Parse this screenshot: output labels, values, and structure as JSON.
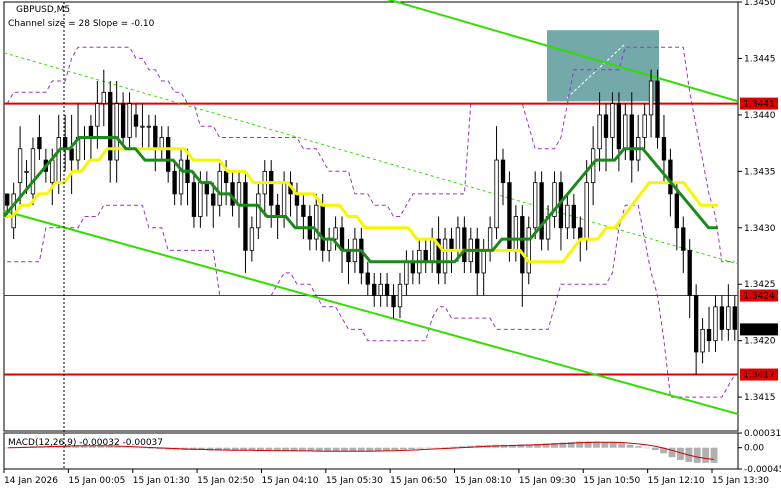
{
  "header": {
    "symbol": "GBPUSD,M5",
    "subtitle": "Channel size = 28 Slope = -0.10"
  },
  "macd": {
    "label": "MACD(12,26,9) -0.00032 -0.00037",
    "ticks": [
      "0.00031",
      "0.00",
      "-0.00045"
    ]
  },
  "colors": {
    "level_line": "#e00000",
    "channel_line": "#33dd00",
    "ma_fast": "#f7f700",
    "ma_slow": "#1a8a1a",
    "envelope": "#9933cc",
    "zone": "#5a9a9a",
    "candle": "#000000",
    "macd_hist": "#b0b0b0",
    "macd_signal": "#cc0000",
    "label_bg": "#e00000",
    "label_text": "#ffffff",
    "current_price_bg": "#000000"
  },
  "chart_data": {
    "type": "candlestick",
    "symbol": "GBPUSD",
    "timeframe": "M5",
    "ylim": [
      1.3412,
      1.345
    ],
    "y_ticks": [
      1.345,
      1.3445,
      1.344,
      1.3435,
      1.343,
      1.3425,
      1.342,
      1.3415
    ],
    "x_ticks": [
      "14 Jan 2026",
      "15 Jan 00:05",
      "15 Jan 01:30",
      "15 Jan 02:50",
      "15 Jan 04:10",
      "15 Jan 05:30",
      "15 Jan 06:50",
      "15 Jan 08:10",
      "15 Jan 09:30",
      "15 Jan 10:50",
      "15 Jan 12:10",
      "15 Jan 13:30"
    ],
    "levels": [
      {
        "value": 1.3441,
        "label": "1.3441",
        "style": "red-thick"
      },
      {
        "value": 1.3424,
        "label": "1.3424",
        "style": "red-thin"
      },
      {
        "value": 1.3417,
        "label": "1.3417",
        "style": "red-thick"
      }
    ],
    "current_price": "1.3421",
    "candles": [
      [
        1.3433,
        1.3432,
        1.3431,
        1.3433
      ],
      [
        1.343,
        1.3433,
        1.3429,
        1.3434
      ],
      [
        1.3434,
        1.3437,
        1.3432,
        1.3439
      ],
      [
        1.3435,
        1.3435,
        1.3433,
        1.3436
      ],
      [
        1.3433,
        1.3437,
        1.3432,
        1.3438
      ],
      [
        1.3438,
        1.3437,
        1.3436,
        1.344
      ],
      [
        1.3436,
        1.3435,
        1.3434,
        1.3437
      ],
      [
        1.3434,
        1.3436,
        1.3432,
        1.3437
      ],
      [
        1.3434,
        1.3438,
        1.3433,
        1.344
      ],
      [
        1.3438,
        1.3437,
        1.3435,
        1.344
      ],
      [
        1.3437,
        1.3436,
        1.3433,
        1.344
      ],
      [
        1.3436,
        1.3438,
        1.3435,
        1.3441
      ],
      [
        1.3438,
        1.3438,
        1.3436,
        1.3439
      ],
      [
        1.3439,
        1.3438,
        1.3436,
        1.344
      ],
      [
        1.3439,
        1.3441,
        1.3437,
        1.3443
      ],
      [
        1.3441,
        1.3442,
        1.3439,
        1.3444
      ],
      [
        1.3442,
        1.3436,
        1.3434,
        1.3443
      ],
      [
        1.3436,
        1.3441,
        1.3434,
        1.3443
      ],
      [
        1.3441,
        1.3438,
        1.3437,
        1.3442
      ],
      [
        1.3438,
        1.3441,
        1.3437,
        1.3442
      ],
      [
        1.344,
        1.3439,
        1.3438,
        1.3441
      ],
      [
        1.3439,
        1.3439,
        1.3437,
        1.3441
      ],
      [
        1.3439,
        1.3439,
        1.3437,
        1.344
      ],
      [
        1.3439,
        1.3437,
        1.3435,
        1.344
      ],
      [
        1.3437,
        1.3438,
        1.3436,
        1.3439
      ],
      [
        1.3438,
        1.3435,
        1.3434,
        1.3439
      ],
      [
        1.3435,
        1.3433,
        1.3432,
        1.3436
      ],
      [
        1.3433,
        1.3436,
        1.3432,
        1.3437
      ],
      [
        1.3436,
        1.3434,
        1.3432,
        1.3437
      ],
      [
        1.3434,
        1.3431,
        1.343,
        1.3435
      ],
      [
        1.3431,
        1.3434,
        1.343,
        1.3435
      ],
      [
        1.3434,
        1.3433,
        1.3431,
        1.3435
      ],
      [
        1.3433,
        1.3432,
        1.343,
        1.3434
      ],
      [
        1.3432,
        1.3435,
        1.3431,
        1.3436
      ],
      [
        1.3435,
        1.3434,
        1.3432,
        1.3436
      ],
      [
        1.3434,
        1.3432,
        1.3431,
        1.3435
      ],
      [
        1.3432,
        1.3434,
        1.343,
        1.3435
      ],
      [
        1.3434,
        1.3428,
        1.3426,
        1.3435
      ],
      [
        1.3428,
        1.343,
        1.3427,
        1.3431
      ],
      [
        1.343,
        1.3433,
        1.3429,
        1.3434
      ],
      [
        1.3433,
        1.3435,
        1.3431,
        1.3436
      ],
      [
        1.3435,
        1.3432,
        1.343,
        1.3436
      ],
      [
        1.3432,
        1.3431,
        1.3429,
        1.3433
      ],
      [
        1.3431,
        1.3434,
        1.343,
        1.3435
      ],
      [
        1.3434,
        1.3433,
        1.3431,
        1.3435
      ],
      [
        1.3433,
        1.3432,
        1.343,
        1.3434
      ],
      [
        1.3432,
        1.3431,
        1.3429,
        1.3433
      ],
      [
        1.3431,
        1.3429,
        1.3428,
        1.3432
      ],
      [
        1.3429,
        1.3432,
        1.3428,
        1.3433
      ],
      [
        1.3432,
        1.3428,
        1.3427,
        1.3433
      ],
      [
        1.3428,
        1.3429,
        1.3427,
        1.343
      ],
      [
        1.3429,
        1.343,
        1.3428,
        1.3431
      ],
      [
        1.343,
        1.3428,
        1.3426,
        1.3431
      ],
      [
        1.3428,
        1.3427,
        1.3425,
        1.3429
      ],
      [
        1.3427,
        1.3429,
        1.3426,
        1.343
      ],
      [
        1.3429,
        1.3426,
        1.3425,
        1.343
      ],
      [
        1.3426,
        1.3425,
        1.3424,
        1.3427
      ],
      [
        1.3425,
        1.3424,
        1.3423,
        1.3426
      ],
      [
        1.3424,
        1.3425,
        1.3423,
        1.3426
      ],
      [
        1.3425,
        1.3424,
        1.3423,
        1.3426
      ],
      [
        1.3424,
        1.3423,
        1.3422,
        1.3425
      ],
      [
        1.3423,
        1.3425,
        1.3422,
        1.3426
      ],
      [
        1.3425,
        1.3427,
        1.3424,
        1.3428
      ],
      [
        1.3427,
        1.3426,
        1.3425,
        1.3428
      ],
      [
        1.3426,
        1.3428,
        1.3425,
        1.3429
      ],
      [
        1.3428,
        1.3427,
        1.3426,
        1.3429
      ],
      [
        1.3427,
        1.3429,
        1.3426,
        1.343
      ],
      [
        1.3429,
        1.3426,
        1.3425,
        1.3431
      ],
      [
        1.3426,
        1.3429,
        1.3425,
        1.343
      ],
      [
        1.3429,
        1.3428,
        1.3426,
        1.343
      ],
      [
        1.3428,
        1.343,
        1.3427,
        1.3431
      ],
      [
        1.343,
        1.3427,
        1.3426,
        1.3431
      ],
      [
        1.3427,
        1.3429,
        1.3426,
        1.343
      ],
      [
        1.3429,
        1.3426,
        1.3424,
        1.343
      ],
      [
        1.3426,
        1.3428,
        1.3424,
        1.3429
      ],
      [
        1.3428,
        1.343,
        1.3427,
        1.3431
      ],
      [
        1.343,
        1.3436,
        1.3429,
        1.3439
      ],
      [
        1.3436,
        1.3434,
        1.3432,
        1.3437
      ],
      [
        1.3434,
        1.3428,
        1.3427,
        1.3435
      ],
      [
        1.3428,
        1.3431,
        1.3427,
        1.3432
      ],
      [
        1.3431,
        1.3426,
        1.3423,
        1.3432
      ],
      [
        1.3426,
        1.343,
        1.3425,
        1.3431
      ],
      [
        1.343,
        1.3434,
        1.3429,
        1.3435
      ],
      [
        1.3434,
        1.3429,
        1.3428,
        1.3435
      ],
      [
        1.3429,
        1.3431,
        1.3428,
        1.3432
      ],
      [
        1.3431,
        1.3434,
        1.343,
        1.3435
      ],
      [
        1.3434,
        1.343,
        1.3428,
        1.3435
      ],
      [
        1.343,
        1.3432,
        1.3429,
        1.3433
      ],
      [
        1.3432,
        1.343,
        1.3429,
        1.3433
      ],
      [
        1.343,
        1.3429,
        1.3427,
        1.3431
      ],
      [
        1.3429,
        1.3434,
        1.3428,
        1.3436
      ],
      [
        1.3434,
        1.3437,
        1.3432,
        1.3439
      ],
      [
        1.3437,
        1.344,
        1.3435,
        1.3442
      ],
      [
        1.344,
        1.3438,
        1.3435,
        1.3441
      ],
      [
        1.3438,
        1.3441,
        1.3436,
        1.3442
      ],
      [
        1.3441,
        1.3437,
        1.3435,
        1.3442
      ],
      [
        1.3437,
        1.344,
        1.3436,
        1.3441
      ],
      [
        1.344,
        1.3436,
        1.3434,
        1.3442
      ],
      [
        1.3436,
        1.3438,
        1.3435,
        1.344
      ],
      [
        1.3438,
        1.344,
        1.3437,
        1.3441
      ],
      [
        1.344,
        1.3443,
        1.3438,
        1.3444
      ],
      [
        1.3443,
        1.3438,
        1.3437,
        1.3444
      ],
      [
        1.3438,
        1.3436,
        1.3434,
        1.344
      ],
      [
        1.3436,
        1.3433,
        1.3431,
        1.3437
      ],
      [
        1.3433,
        1.343,
        1.3428,
        1.3434
      ],
      [
        1.343,
        1.3428,
        1.3426,
        1.3431
      ],
      [
        1.3428,
        1.3424,
        1.3422,
        1.3429
      ],
      [
        1.3424,
        1.3419,
        1.3417,
        1.3425
      ],
      [
        1.3419,
        1.3421,
        1.3418,
        1.3422
      ],
      [
        1.3421,
        1.342,
        1.3419,
        1.3423
      ],
      [
        1.342,
        1.3423,
        1.3419,
        1.3424
      ],
      [
        1.3423,
        1.3421,
        1.342,
        1.3424
      ],
      [
        1.3421,
        1.3423,
        1.342,
        1.3425
      ],
      [
        1.3423,
        1.3421,
        1.342,
        1.3424
      ]
    ],
    "ma_fast": [
      1.3431,
      1.3431,
      1.3432,
      1.3432,
      1.3433,
      1.3433,
      1.3434,
      1.3434,
      1.3435,
      1.3435,
      1.3436,
      1.3436,
      1.3437,
      1.3437,
      1.3437,
      1.3437,
      1.3437,
      1.3437,
      1.3437,
      1.3437,
      1.3437,
      1.3437,
      1.3436,
      1.3436,
      1.3436,
      1.3436,
      1.3435,
      1.3435,
      1.3435,
      1.3434,
      1.3434,
      1.3434,
      1.3434,
      1.3434,
      1.3433,
      1.3433,
      1.3433,
      1.3432,
      1.3432,
      1.3432,
      1.3431,
      1.3431,
      1.343,
      1.343,
      1.343,
      1.343,
      1.343,
      1.343,
      1.3429,
      1.3429,
      1.3429,
      1.3428,
      1.3428,
      1.3428,
      1.3428,
      1.3428,
      1.3428,
      1.3428,
      1.3428,
      1.3428,
      1.3428,
      1.3427,
      1.3427,
      1.3427,
      1.3427,
      1.3427,
      1.3428,
      1.3429,
      1.3429,
      1.3429,
      1.343,
      1.343,
      1.3431,
      1.3432,
      1.3433,
      1.3434,
      1.3434,
      1.3434,
      1.3434,
      1.3434,
      1.3433,
      1.3432,
      1.3432,
      1.3432
    ],
    "ma_slow": [
      1.3431,
      1.3432,
      1.3433,
      1.3434,
      1.3435,
      1.3436,
      1.3437,
      1.3437,
      1.3438,
      1.3438,
      1.3438,
      1.3438,
      1.3438,
      1.3437,
      1.3437,
      1.3436,
      1.3436,
      1.3436,
      1.3436,
      1.3435,
      1.3435,
      1.3434,
      1.3434,
      1.3433,
      1.3433,
      1.3432,
      1.3432,
      1.3432,
      1.3431,
      1.3431,
      1.3431,
      1.343,
      1.343,
      1.343,
      1.3429,
      1.3429,
      1.3428,
      1.3428,
      1.3428,
      1.3427,
      1.3427,
      1.3427,
      1.3427,
      1.3427,
      1.3427,
      1.3427,
      1.3427,
      1.3427,
      1.3427,
      1.3428,
      1.3428,
      1.3428,
      1.3428,
      1.3429,
      1.3429,
      1.3429,
      1.3429,
      1.343,
      1.3431,
      1.3432,
      1.3433,
      1.3434,
      1.3435,
      1.3436,
      1.3436,
      1.3436,
      1.3437,
      1.3437,
      1.3437,
      1.3436,
      1.3435,
      1.3434,
      1.3433,
      1.3432,
      1.3431,
      1.343,
      1.343
    ],
    "macd_hist": [
      0,
      1e-05,
      2e-05,
      3e-05,
      3e-05,
      4e-05,
      4e-05,
      5e-05,
      5e-05,
      5e-05,
      4e-05,
      4e-05,
      3e-05,
      2e-05,
      1e-05,
      0,
      -1e-05,
      -2e-05,
      -3e-05,
      -4e-05,
      -4e-05,
      -5e-05,
      -5e-05,
      -5e-05,
      -6e-05,
      -6e-05,
      -6e-05,
      -6e-05,
      -6e-05,
      -6e-05,
      -7e-05,
      -7e-05,
      -7e-05,
      -7e-05,
      -7e-05,
      -7e-05,
      -7e-05,
      -8e-05,
      -8e-05,
      -8e-05,
      -8e-05,
      -8e-05,
      -7e-05,
      -7e-05,
      -6e-05,
      -6e-05,
      -5e-05,
      -4e-05,
      -3e-05,
      -2e-05,
      -1e-05,
      0,
      1e-05,
      2e-05,
      3e-05,
      4e-05,
      5e-05,
      5e-05,
      6e-05,
      6e-05,
      6e-05,
      7e-05,
      7e-05,
      8e-05,
      9e-05,
      0.0001,
      0.00011,
      0.00012,
      0.00013,
      0.00013,
      0.00013,
      0.00012,
      0.00011,
      9e-05,
      6e-05,
      3e-05,
      0,
      -5e-05,
      -0.00012,
      -0.0002,
      -0.00026,
      -0.0003,
      -0.00032,
      -0.00032,
      -0.00032
    ]
  }
}
